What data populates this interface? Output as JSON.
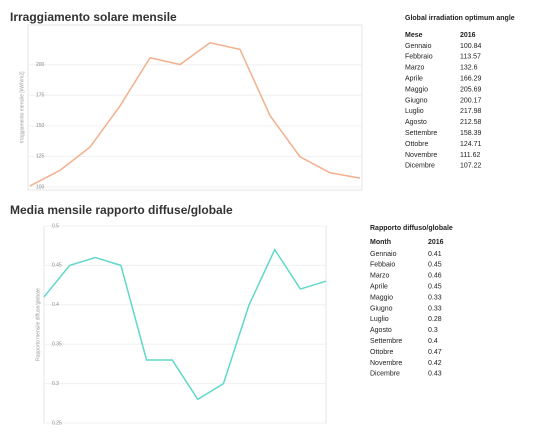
{
  "chart_data": [
    {
      "type": "line",
      "title": "Irraggiamento solare mensile",
      "ylabel": "Irraggiamento mensile [kWh/m2]",
      "table_title": "Global irradiation  optimum angle",
      "column_headers": [
        "Mese",
        "2016"
      ],
      "categories": [
        "Gennaio",
        "Febbraio",
        "Marzo",
        "Aprile",
        "Maggio",
        "Giugno",
        "Luglio",
        "Agosto",
        "Settembre",
        "Ottobre",
        "Novembre",
        "Dicembre"
      ],
      "values": [
        100.84,
        113.57,
        132.6,
        166.29,
        205.69,
        200.17,
        217.98,
        212.58,
        158.39,
        124.71,
        111.62,
        107.22
      ],
      "color": "#f2b08c",
      "ylim": [
        97.5,
        232.5
      ],
      "yticks": [
        100,
        125,
        150,
        175,
        200
      ],
      "grid": true
    },
    {
      "type": "line",
      "title": "Media mensile rapporto diffuse/globale",
      "ylabel": "Rapporto mensile diffuse/globale",
      "table_title": "Rapporto diffuso/globale",
      "column_headers": [
        "Month",
        "2016"
      ],
      "categories": [
        "Gennaio",
        "Febbaio",
        "Marzo",
        "Aprile",
        "Maggio",
        "Giugno",
        "Luglio",
        "Agosto",
        "Settembre",
        "Ottobre",
        "Novembre",
        "Dicembre"
      ],
      "values": [
        0.41,
        0.45,
        0.46,
        0.45,
        0.33,
        0.33,
        0.28,
        0.3,
        0.4,
        0.47,
        0.42,
        0.43
      ],
      "color": "#5fd8c9",
      "ylim": [
        0.25,
        0.5
      ],
      "yticks": [
        0.25,
        0.3,
        0.35,
        0.4,
        0.45,
        0.5
      ],
      "grid": true
    }
  ]
}
